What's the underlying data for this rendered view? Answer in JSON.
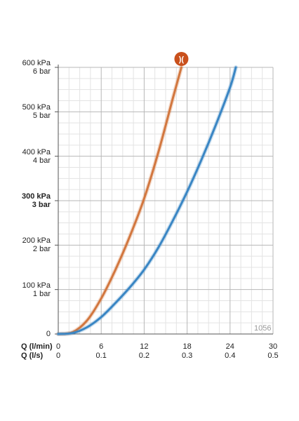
{
  "chart_data": {
    "type": "line",
    "y_unit_primary": "kPa",
    "y_unit_secondary": "bar",
    "ylim": [
      0,
      600
    ],
    "y_ticks": [
      {
        "value": 0,
        "kpa": "0",
        "bar": ""
      },
      {
        "value": 100,
        "kpa": "100 kPa",
        "bar": "1 bar"
      },
      {
        "value": 200,
        "kpa": "200 kPa",
        "bar": "2 bar"
      },
      {
        "value": 300,
        "kpa": "300 kPa",
        "bar": "3 bar",
        "emphasis": true
      },
      {
        "value": 400,
        "kpa": "400 kPa",
        "bar": "4 bar"
      },
      {
        "value": 500,
        "kpa": "500 kPa",
        "bar": "5 bar"
      },
      {
        "value": 600,
        "kpa": "600 kPa",
        "bar": "6 bar"
      }
    ],
    "xlim": [
      0,
      30
    ],
    "x_axis_label_1": "Q (l/min)",
    "x_axis_label_2": "Q (l/s)",
    "x_ticks_lmin": [
      "0",
      "6",
      "12",
      "18",
      "24",
      "30"
    ],
    "x_ticks_ls": [
      "0",
      "0.1",
      "0.2",
      "0.3",
      "0.4",
      "0.5"
    ],
    "grid": true,
    "series": [
      {
        "color": "#d2773f",
        "x": [
          0,
          2,
          4,
          6,
          8,
          10,
          12,
          14,
          16,
          17.2
        ],
        "y": [
          0,
          4,
          30,
          80,
          145,
          220,
          305,
          410,
          530,
          600
        ]
      },
      {
        "color": "#3a86c4",
        "x": [
          0,
          2,
          4,
          6,
          8,
          10,
          12,
          14,
          16,
          18,
          20,
          22,
          24,
          24.8
        ],
        "y": [
          0,
          2,
          15,
          38,
          70,
          105,
          145,
          195,
          255,
          320,
          392,
          470,
          555,
          600
        ]
      }
    ],
    "marker": {
      "icon": "flow-limiter-icon",
      "text": ")(",
      "color": "#c9501c"
    },
    "code": "1056"
  }
}
